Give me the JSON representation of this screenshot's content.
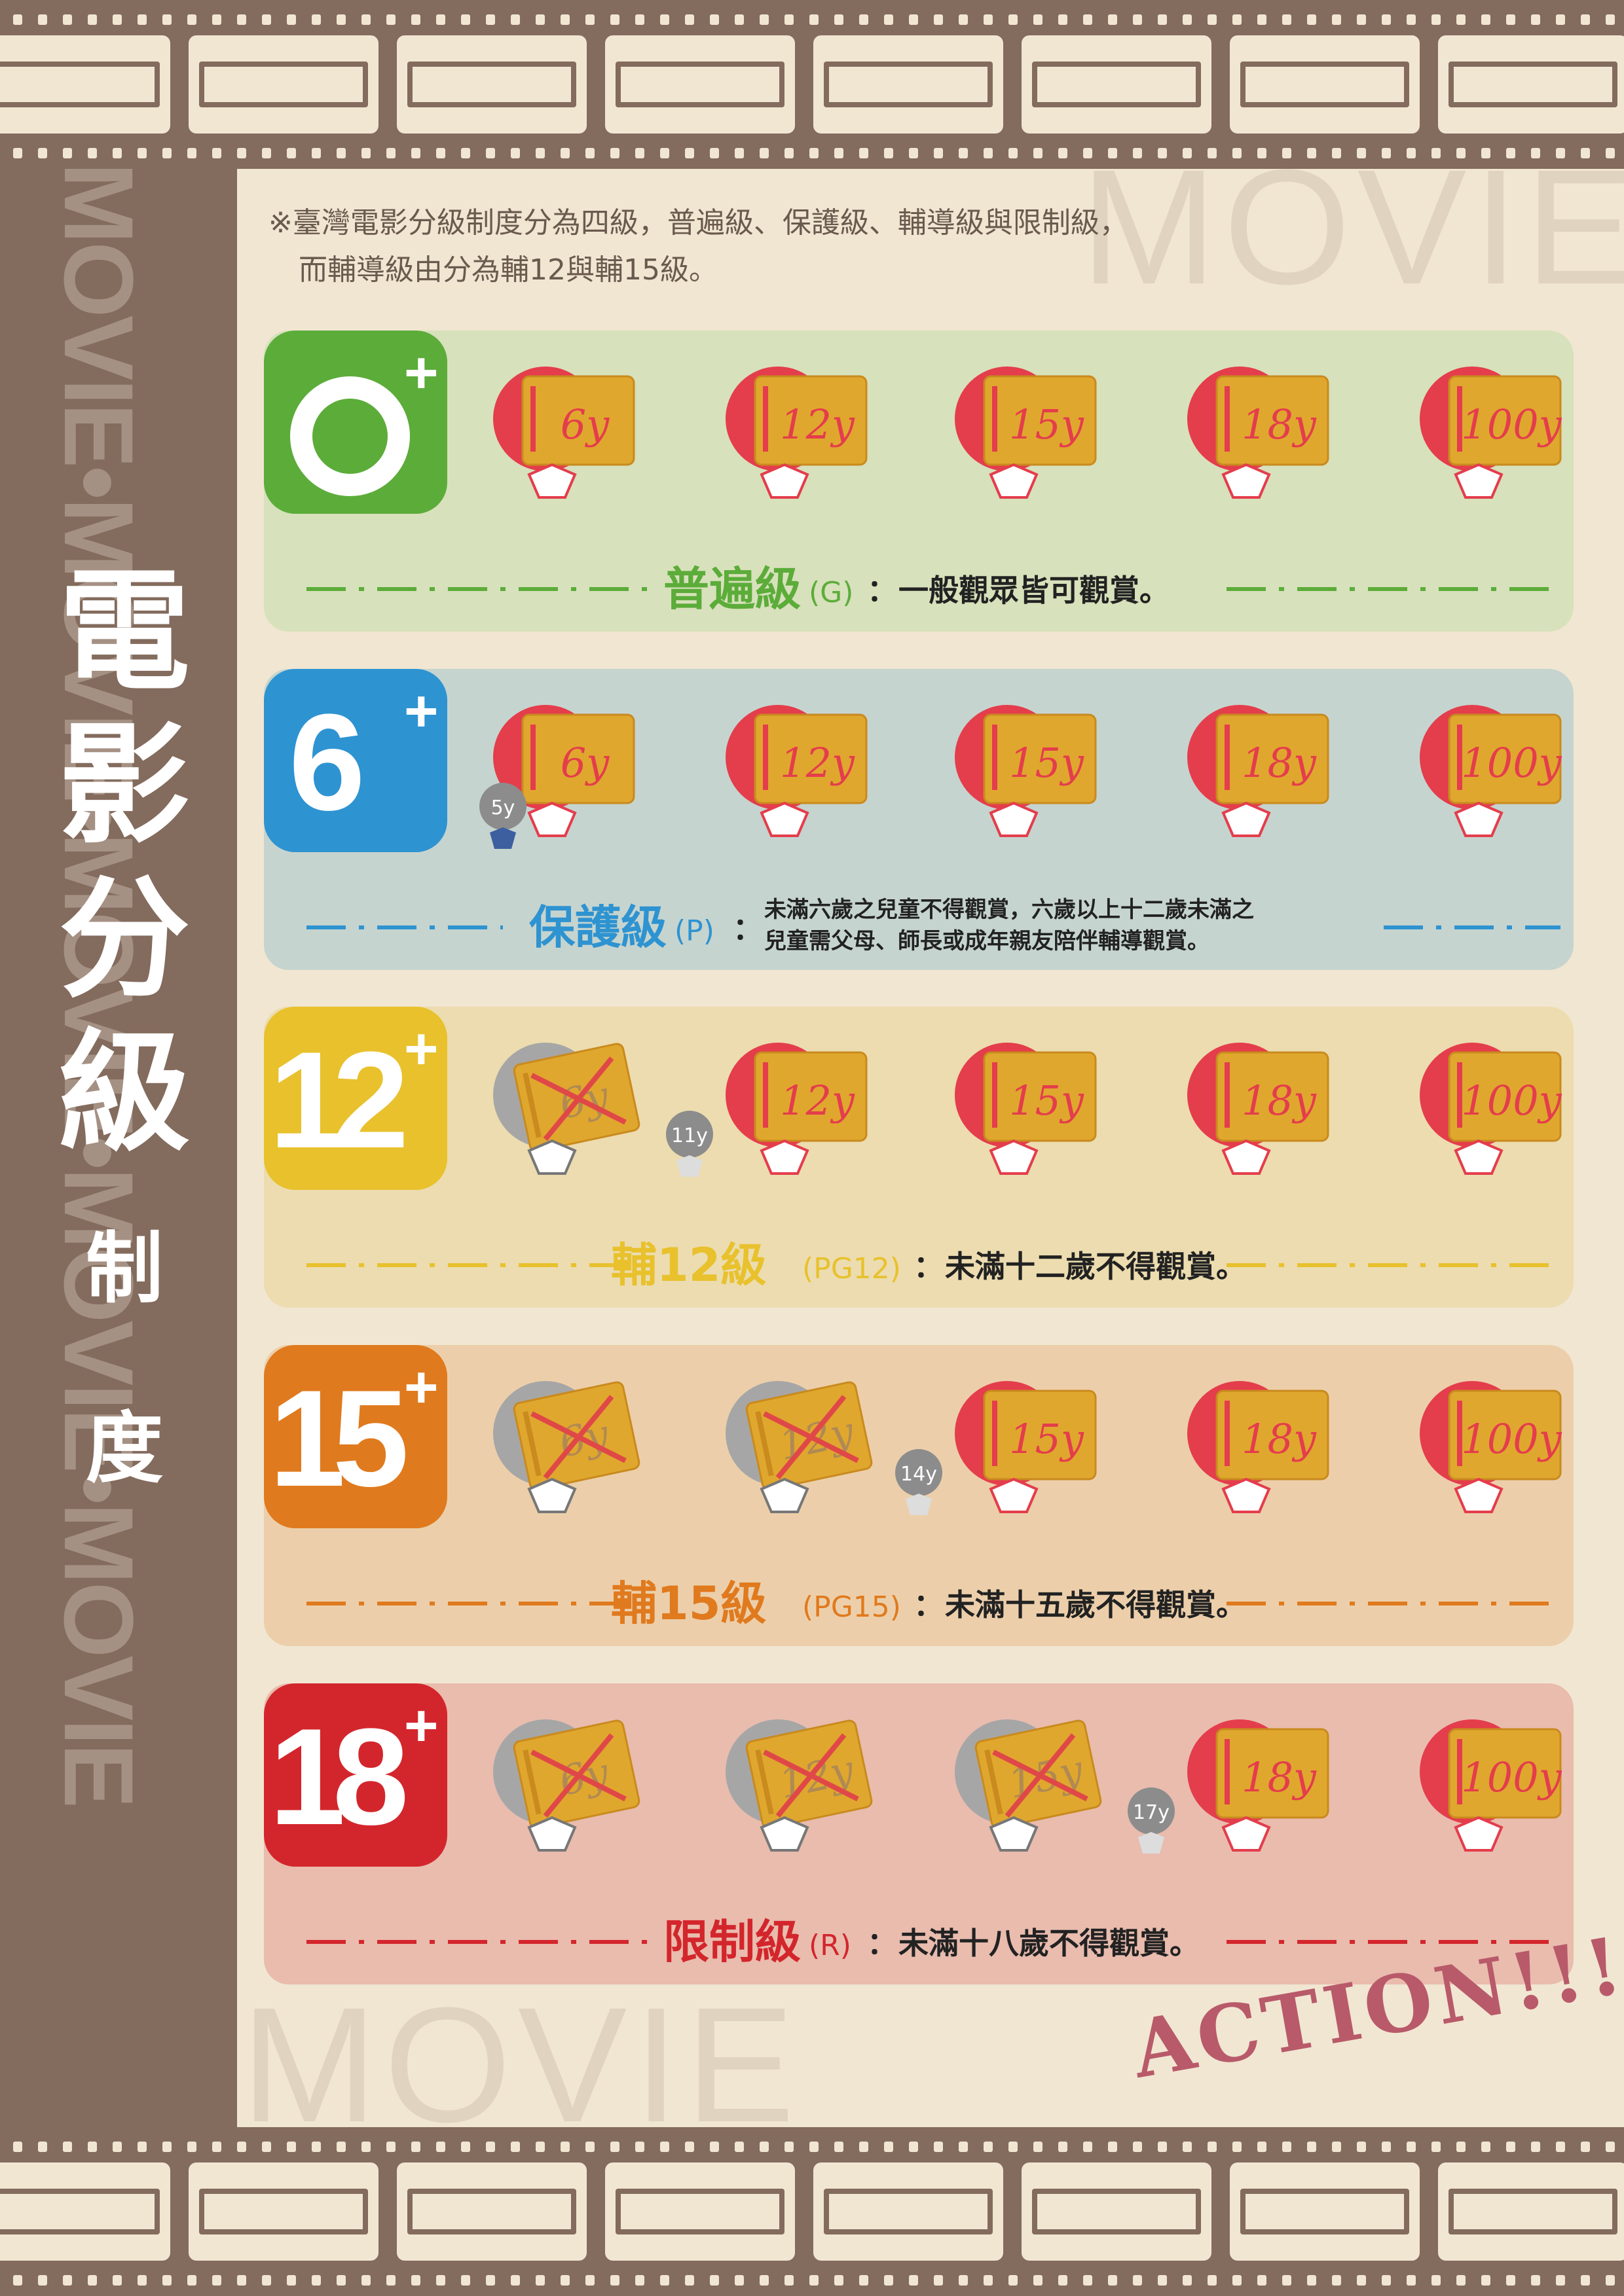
{
  "header_note": {
    "line1": "※臺灣電影分級制度分為四級，普遍級、保護級、輔導級與限制級，",
    "line2": "而輔導級由分為輔12與輔15級。"
  },
  "sidebar": {
    "watermark": "MOVIE•MOVIE•MOVIE•MOVIE•MOVIE",
    "title_chars": [
      "電",
      "影",
      "分",
      "級",
      "制",
      "度"
    ]
  },
  "watermarks": {
    "top": "MOVIE",
    "bottom": "MOVIE"
  },
  "action_text": "ACTION!!!",
  "ages": [
    "6y",
    "12y",
    "15y",
    "18y",
    "100y"
  ],
  "colors": {
    "background": "#f1e6d2",
    "film": "#836b5d",
    "sign": "#e0a72e",
    "balloon": "#e43d4c",
    "blocked": "#a6a6a6",
    "cross": "#e04848"
  },
  "ratings": [
    {
      "badge": "0",
      "badge_plus": "+",
      "name": "普遍級",
      "code": "(G)",
      "sep": "：",
      "description": "一般觀眾皆可觀賞。",
      "description2": "",
      "color": "#5cac3a",
      "panel_color": "#d7e1bb",
      "allowed": [
        true,
        true,
        true,
        true,
        true
      ]
    },
    {
      "badge": "6",
      "badge_plus": "+",
      "name": "保護級",
      "code": "(P)",
      "sep": "：",
      "description": "未滿六歲之兒童不得觀賞，六歲以上十二歲未滿之",
      "description2": "兒童需父母、師長或成年親友陪伴輔導觀賞。",
      "color": "#2e93d1",
      "panel_color": "#c6d4cf",
      "allowed": [
        true,
        true,
        true,
        true,
        true
      ],
      "kid_label": "5y"
    },
    {
      "badge": "12",
      "badge_plus": "+",
      "name": "輔12級",
      "code": "(PG12)",
      "sep": "：",
      "description": "未滿十二歲不得觀賞。",
      "description2": "",
      "color": "#e8c12c",
      "panel_color": "#ecdcaf",
      "allowed": [
        false,
        true,
        true,
        true,
        true
      ],
      "kid_label": "11y"
    },
    {
      "badge": "15",
      "badge_plus": "+",
      "name": "輔15級",
      "code": "(PG15)",
      "sep": "：",
      "description": "未滿十五歲不得觀賞。",
      "description2": "",
      "color": "#e07a1e",
      "panel_color": "#eccfaa",
      "allowed": [
        false,
        false,
        true,
        true,
        true
      ],
      "kid_label": "14y"
    },
    {
      "badge": "18",
      "badge_plus": "+",
      "name": "限制級",
      "code": "(R)",
      "sep": "：",
      "description": "未滿十八歲不得觀賞。",
      "description2": "",
      "color": "#d3262c",
      "panel_color": "#e9bcae",
      "allowed": [
        false,
        false,
        false,
        true,
        true
      ],
      "kid_label": "17y"
    }
  ]
}
